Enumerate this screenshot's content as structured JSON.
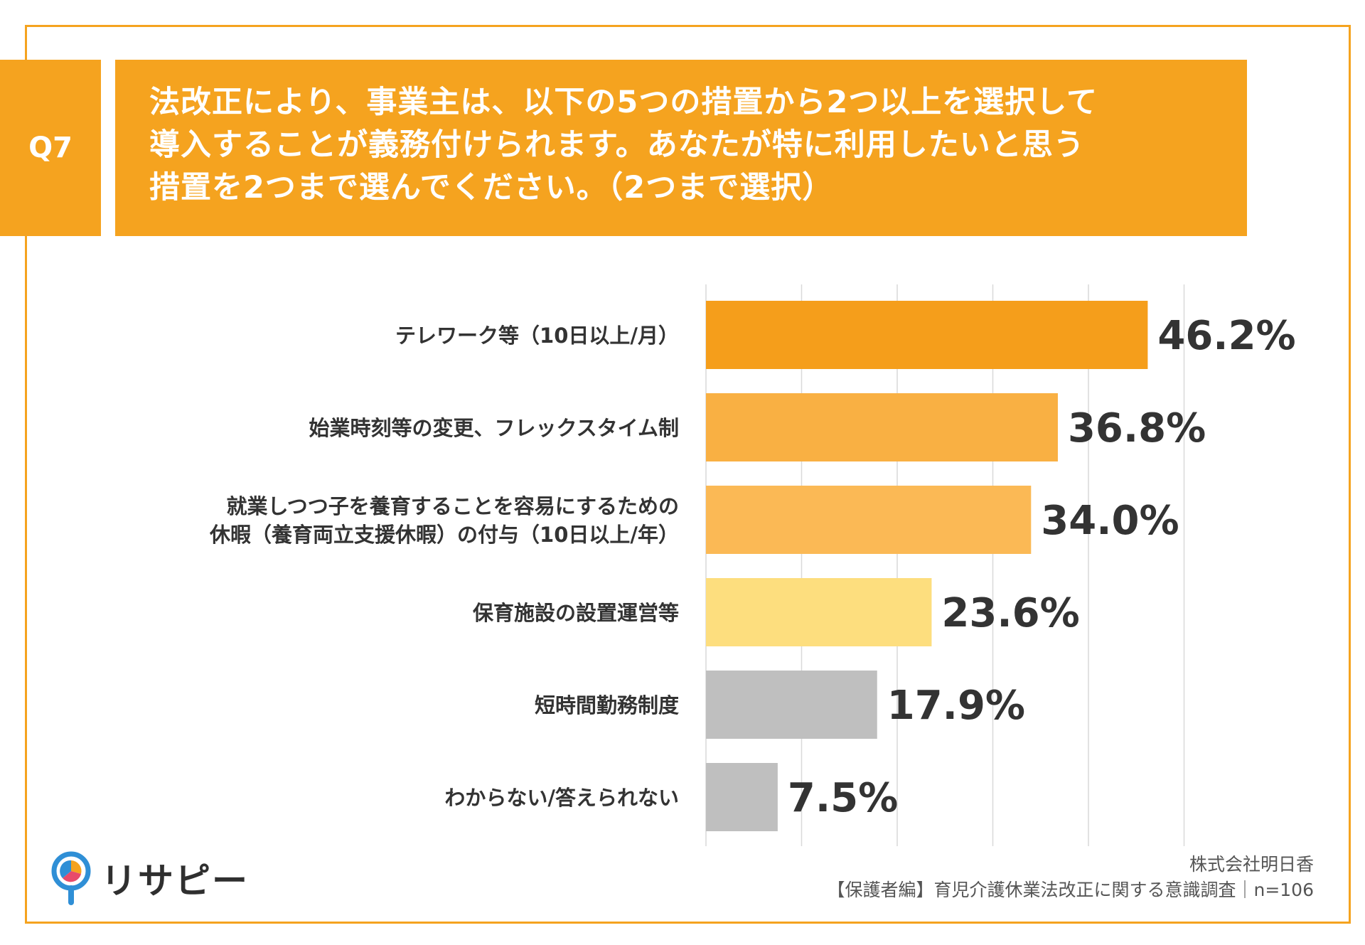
{
  "question": {
    "badge": "Q7",
    "lines": [
      "法改正により、事業主は、以下の5つの措置から2つ以上を選択して",
      "導入することが義務付けられます。あなたが特に利用したいと思う",
      "措置を2つまで選んでください。（2つまで選択）"
    ]
  },
  "chart_data": {
    "type": "bar",
    "orientation": "horizontal",
    "grid": true,
    "xlim": [
      0,
      50
    ],
    "categories": [
      [
        "テレワーク等（10日以上/月）"
      ],
      [
        "始業時刻等の変更、フレックスタイム制"
      ],
      [
        "就業しつつ子を養育することを容易にするための",
        "休暇（養育両立支援休暇）の付与（10日以上/年）"
      ],
      [
        "保育施設の設置運営等"
      ],
      [
        "短時間勤務制度"
      ],
      [
        "わからない/答えられない"
      ]
    ],
    "values": [
      46.2,
      36.8,
      34.0,
      23.6,
      17.9,
      7.5
    ],
    "value_labels": [
      "46.2%",
      "36.8%",
      "34.0%",
      "23.6%",
      "17.9%",
      "7.5%"
    ],
    "bar_colors": [
      "#F59E1B",
      "#F9B043",
      "#FBB955",
      "#FDDE7E",
      "#BFBFBF",
      "#BFBFBF"
    ]
  },
  "footer": {
    "company": "株式会社明日香",
    "survey": "【保護者編】育児介護休業法改正に関する意識調査｜n=106"
  },
  "logo": {
    "text": "リサピー",
    "colors": [
      "#F5A31F",
      "#2F8FD6",
      "#E84B6B"
    ]
  }
}
